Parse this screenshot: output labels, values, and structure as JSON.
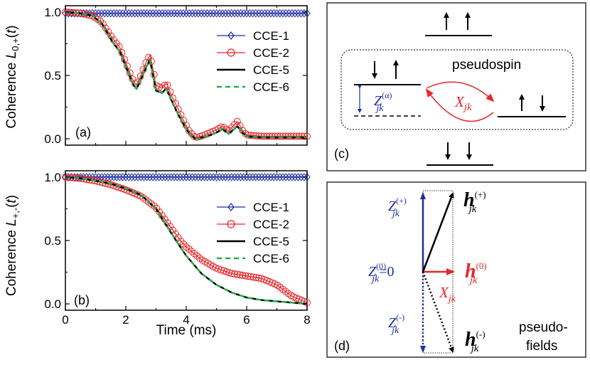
{
  "chart_data": [
    {
      "panel": "(a)",
      "type": "line",
      "ylabel": "Coherence L0,+(t)",
      "xlim": [
        0,
        8
      ],
      "ylim": [
        -0.05,
        1.05
      ],
      "yticks": [
        "0.0",
        "0.5",
        "1.0"
      ],
      "legend": "right",
      "series": [
        {
          "name": "CCE-1",
          "color": "#1f2ea0",
          "marker": "diamond",
          "x": [
            0,
            8
          ],
          "y": [
            0.99,
            0.99
          ]
        },
        {
          "name": "CCE-2",
          "color": "#e8262a",
          "marker": "circle",
          "x": [
            0.0,
            0.5,
            0.9,
            1.2,
            1.4,
            1.6,
            1.8,
            2.0,
            2.2,
            2.35,
            2.5,
            2.7,
            2.8,
            2.9,
            3.0,
            3.2,
            3.35,
            3.5,
            3.7,
            3.9,
            4.1,
            4.3,
            4.5,
            4.8,
            5.0,
            5.2,
            5.4,
            5.55,
            5.7,
            5.85,
            6.0,
            6.5,
            7.0,
            8.0
          ],
          "y": [
            1.0,
            0.99,
            0.97,
            0.92,
            0.85,
            0.78,
            0.72,
            0.6,
            0.48,
            0.42,
            0.5,
            0.62,
            0.66,
            0.55,
            0.42,
            0.4,
            0.44,
            0.35,
            0.25,
            0.15,
            0.06,
            0.01,
            0.02,
            0.05,
            0.07,
            0.1,
            0.06,
            0.1,
            0.14,
            0.07,
            0.03,
            0.02,
            0.02,
            0.02
          ]
        },
        {
          "name": "CCE-5",
          "color": "#000000",
          "marker": "none",
          "x": [
            0.0,
            0.5,
            0.9,
            1.2,
            1.4,
            1.6,
            1.8,
            2.0,
            2.2,
            2.35,
            2.5,
            2.7,
            2.8,
            2.9,
            3.0,
            3.2,
            3.35,
            3.5,
            3.7,
            3.9,
            4.1,
            4.3,
            4.5,
            4.8,
            5.0,
            5.2,
            5.4,
            5.55,
            5.7,
            5.85,
            6.0,
            6.5,
            7.0,
            8.0
          ],
          "y": [
            1.0,
            0.99,
            0.97,
            0.91,
            0.83,
            0.75,
            0.69,
            0.57,
            0.45,
            0.39,
            0.47,
            0.58,
            0.62,
            0.5,
            0.38,
            0.36,
            0.4,
            0.31,
            0.21,
            0.12,
            0.04,
            0.0,
            0.01,
            0.03,
            0.05,
            0.08,
            0.04,
            0.07,
            0.1,
            0.05,
            0.02,
            0.01,
            0.01,
            0.01
          ]
        },
        {
          "name": "CCE-6",
          "color": "#22b04b",
          "marker": "none",
          "dashed": true,
          "x": [
            0.0,
            0.5,
            0.9,
            1.2,
            1.4,
            1.6,
            1.8,
            2.0,
            2.2,
            2.35,
            2.5,
            2.7,
            2.8,
            2.9,
            3.0,
            3.2,
            3.35,
            3.5,
            3.7,
            3.9,
            4.1,
            4.3,
            4.5,
            4.8,
            5.0,
            5.2,
            5.4,
            5.55,
            5.7,
            5.85,
            6.0,
            6.5,
            7.0,
            8.0
          ],
          "y": [
            1.0,
            0.99,
            0.97,
            0.91,
            0.83,
            0.75,
            0.69,
            0.57,
            0.45,
            0.39,
            0.47,
            0.58,
            0.62,
            0.5,
            0.38,
            0.36,
            0.4,
            0.31,
            0.21,
            0.12,
            0.04,
            0.0,
            0.01,
            0.03,
            0.05,
            0.08,
            0.04,
            0.07,
            0.1,
            0.05,
            0.02,
            0.01,
            0.01,
            0.01
          ]
        }
      ]
    },
    {
      "panel": "(b)",
      "type": "line",
      "ylabel": "Coherence L+,-(t)",
      "xlabel": "Time (ms)",
      "xlim": [
        0,
        8
      ],
      "ylim": [
        -0.05,
        1.05
      ],
      "xticks": [
        "0",
        "2",
        "4",
        "6",
        "8"
      ],
      "yticks": [
        "0.0",
        "0.5",
        "1.0"
      ],
      "legend": "right",
      "series": [
        {
          "name": "CCE-1",
          "color": "#1f2ea0",
          "marker": "diamond",
          "x": [
            0,
            8
          ],
          "y": [
            1.0,
            1.0
          ]
        },
        {
          "name": "CCE-2",
          "color": "#e8262a",
          "marker": "circle",
          "x": [
            0,
            0.5,
            1.0,
            1.5,
            2.0,
            2.5,
            3.0,
            3.5,
            3.8,
            4.0,
            4.5,
            5.0,
            5.5,
            6.0,
            6.5,
            7.0,
            7.5,
            8.0
          ],
          "y": [
            1.0,
            0.99,
            0.97,
            0.94,
            0.9,
            0.85,
            0.76,
            0.6,
            0.5,
            0.45,
            0.35,
            0.28,
            0.24,
            0.22,
            0.2,
            0.15,
            0.06,
            0.01
          ]
        },
        {
          "name": "CCE-5",
          "color": "#000000",
          "marker": "none",
          "x": [
            0,
            0.5,
            1.0,
            1.5,
            2.0,
            2.5,
            3.0,
            3.5,
            3.8,
            4.0,
            4.5,
            5.0,
            5.5,
            6.0,
            6.5,
            7.0,
            7.5,
            8.0
          ],
          "y": [
            1.0,
            0.99,
            0.97,
            0.95,
            0.91,
            0.86,
            0.75,
            0.56,
            0.45,
            0.38,
            0.24,
            0.15,
            0.09,
            0.05,
            0.03,
            0.02,
            0.01,
            0.0
          ]
        },
        {
          "name": "CCE-6",
          "color": "#22b04b",
          "marker": "none",
          "dashed": true,
          "x": [
            0,
            0.5,
            1.0,
            1.5,
            2.0,
            2.5,
            3.0,
            3.5,
            3.8,
            4.0,
            4.5,
            5.0,
            5.5,
            6.0,
            6.5,
            7.0,
            7.5,
            8.0
          ],
          "y": [
            1.0,
            0.99,
            0.97,
            0.95,
            0.91,
            0.86,
            0.75,
            0.56,
            0.45,
            0.38,
            0.24,
            0.15,
            0.09,
            0.05,
            0.03,
            0.02,
            0.01,
            0.0
          ]
        }
      ]
    }
  ],
  "diagram_c": {
    "label": "(c)",
    "pseudospin_text": "pseudospin",
    "z_label": "Z",
    "z_sup": "(α)",
    "z_sub": "jk",
    "x_label": "X",
    "x_sub": "jk",
    "colors": {
      "blue": "#1f2ea0",
      "red": "#e8262a"
    }
  },
  "diagram_d": {
    "label": "(d)",
    "z_plus": {
      "main": "Z",
      "sup": "(+)",
      "sub": "jk"
    },
    "z_zero": {
      "main": "Z",
      "sup": "(0)",
      "sub": "jk",
      "tail": "=0"
    },
    "z_minus": {
      "main": "Z",
      "sup": "(-)",
      "sub": "jk"
    },
    "x_label": {
      "main": "X",
      "sub": "jk"
    },
    "h_plus": {
      "main": "h",
      "sup": "(+)",
      "sub": "jk"
    },
    "h_zero": {
      "main": "h",
      "sup": "(0)",
      "sub": "jk"
    },
    "h_minus": {
      "main": "h",
      "sup": "(-)",
      "sub": "jk"
    },
    "pseudo_line1": "pseudo-",
    "pseudo_line2": "fields",
    "colors": {
      "blue": "#1f2ea0",
      "red": "#e8262a"
    }
  }
}
